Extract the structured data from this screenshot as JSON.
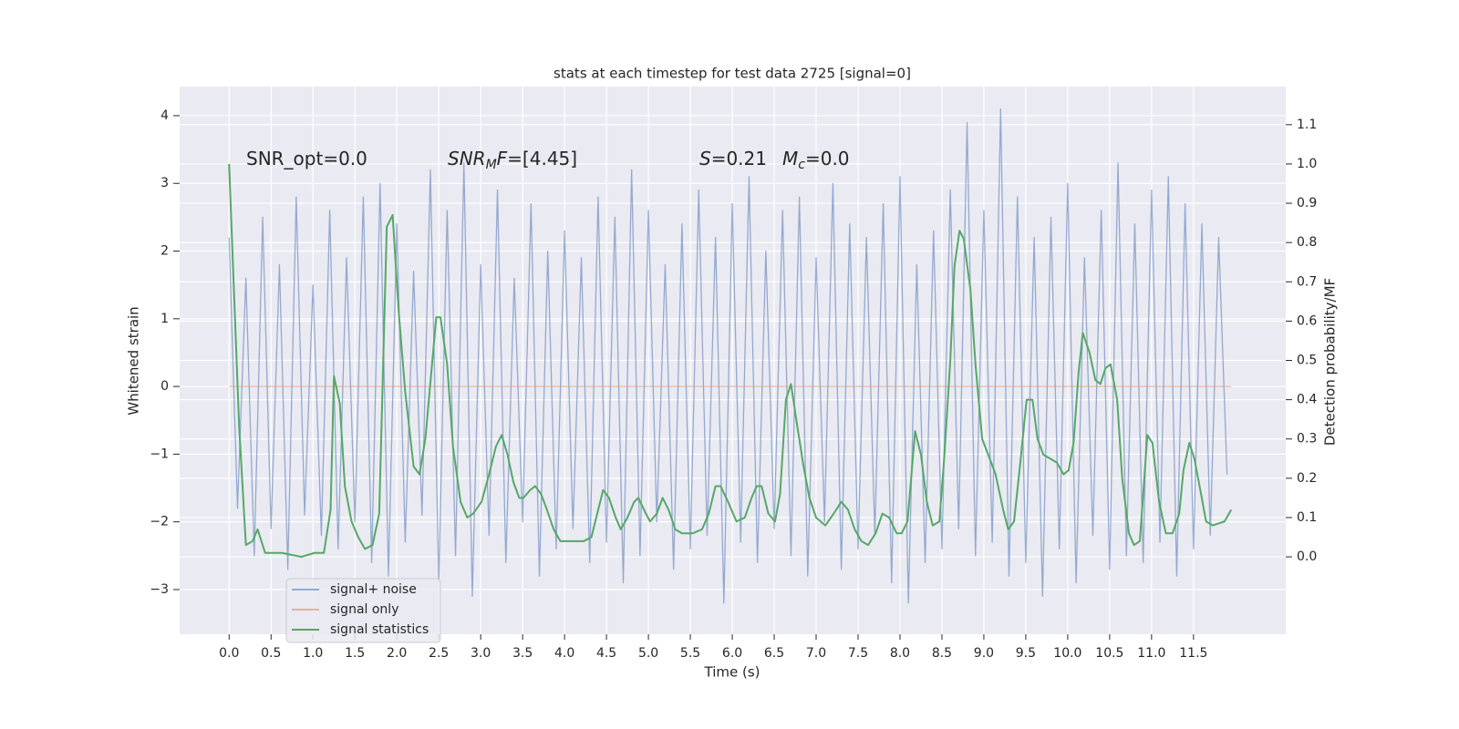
{
  "chart_data": {
    "type": "line",
    "title": "stats at each timestep for test data 2725 [signal=0]",
    "xlabel": "Time (s)",
    "ylabel": "Whitened strain",
    "y2label": "Detection probability/MF",
    "xlim": [
      -0.59,
      12.6
    ],
    "ylim": [
      -3.66,
      4.43
    ],
    "y2lim": [
      -0.197,
      1.197
    ],
    "xticks": [
      {
        "value": 0,
        "label": "0.0"
      },
      0.5,
      {
        "value": 1,
        "label": "1.0"
      },
      1.5,
      {
        "value": 2,
        "label": "2.0"
      },
      2.5,
      {
        "value": 3,
        "label": "3.0"
      },
      3.5,
      {
        "value": 4,
        "label": "4.0"
      },
      4.5,
      {
        "value": 5,
        "label": "5.0"
      },
      5.5,
      {
        "value": 6,
        "label": "6.0"
      },
      6.5,
      {
        "value": 7,
        "label": "7.0"
      },
      7.5,
      {
        "value": 8,
        "label": "8.0"
      },
      8.5,
      {
        "value": 9,
        "label": "9.0"
      },
      9.5,
      {
        "value": 10,
        "label": "10.0"
      },
      10.5,
      {
        "value": 11,
        "label": "11.0"
      },
      11.5
    ],
    "yticks": [
      {
        "value": -3,
        "label": "−3"
      },
      {
        "value": -2,
        "label": "−2"
      },
      {
        "value": -1,
        "label": "−1"
      },
      0,
      1,
      2,
      3,
      4
    ],
    "y2ticks": [
      {
        "value": 0,
        "label": "0.0"
      },
      0.1,
      0.2,
      0.3,
      0.4,
      0.5,
      0.6,
      0.7,
      0.8,
      0.9,
      {
        "value": 1,
        "label": "1.0"
      },
      1.1
    ],
    "grid": true,
    "annotations": [
      [
        {
          "text": "SNR_opt=0.0"
        }
      ],
      [
        {
          "text": "SNR",
          "italic": true
        },
        {
          "text": "M",
          "italic": true,
          "sub": true
        },
        {
          "text": "F",
          "italic": true
        },
        {
          "text": "=[4.45]"
        }
      ],
      [
        {
          "text": "S",
          "italic": true
        },
        {
          "text": "=0.21"
        }
      ],
      [
        {
          "text": "M",
          "italic": true
        },
        {
          "text": "c",
          "italic": true,
          "sub": true
        },
        {
          "text": "=0.0"
        }
      ]
    ],
    "series": [
      {
        "name": "signal+ noise",
        "color": "#4c72b0",
        "opacity": 0.55,
        "x": [
          0,
          0.1,
          0.2,
          0.3,
          0.4,
          0.5,
          0.6,
          0.7,
          0.8,
          0.9,
          1,
          1.1,
          1.2,
          1.3,
          1.4,
          1.5,
          1.6,
          1.7,
          1.8,
          1.9,
          2,
          2.1,
          2.2,
          2.3,
          2.4,
          2.5,
          2.6,
          2.7,
          2.8,
          2.9,
          3,
          3.1,
          3.2,
          3.3,
          3.4,
          3.5,
          3.6,
          3.7,
          3.8,
          3.9,
          4,
          4.1,
          4.2,
          4.3,
          4.4,
          4.5,
          4.6,
          4.7,
          4.8,
          4.9,
          5,
          5.1,
          5.2,
          5.3,
          5.4,
          5.5,
          5.6,
          5.7,
          5.8,
          5.9,
          6,
          6.1,
          6.2,
          6.3,
          6.4,
          6.5,
          6.6,
          6.7,
          6.8,
          6.9,
          7,
          7.1,
          7.2,
          7.3,
          7.4,
          7.5,
          7.6,
          7.7,
          7.8,
          7.9,
          8,
          8.1,
          8.2,
          8.3,
          8.4,
          8.5,
          8.6,
          8.7,
          8.8,
          8.9,
          9,
          9.1,
          9.2,
          9.3,
          9.4,
          9.5,
          9.6,
          9.7,
          9.8,
          9.9,
          10,
          10.1,
          10.2,
          10.3,
          10.4,
          10.5,
          10.6,
          10.7,
          10.8,
          10.9,
          11,
          11.1,
          11.2,
          11.3,
          11.4,
          11.5,
          11.6,
          11.7,
          11.8,
          11.9
        ],
        "values": [
          2.2,
          -1.8,
          1.6,
          -2.5,
          2.5,
          -2.1,
          1.8,
          -2.7,
          2.8,
          -1.9,
          1.5,
          -2.2,
          2.6,
          -2.4,
          1.9,
          -2.0,
          2.8,
          -2.6,
          3.0,
          -2.8,
          2.4,
          -2.3,
          1.7,
          -1.9,
          3.2,
          -2.9,
          2.6,
          -2.5,
          3.3,
          -3.1,
          1.8,
          -2.2,
          2.9,
          -2.6,
          1.6,
          -2.0,
          2.7,
          -2.8,
          2.0,
          -2.4,
          2.3,
          -2.1,
          1.9,
          -2.6,
          2.8,
          -2.3,
          2.5,
          -2.9,
          3.2,
          -2.5,
          2.6,
          -2.0,
          1.8,
          -2.7,
          2.4,
          -2.4,
          2.9,
          -2.2,
          2.2,
          -3.2,
          2.7,
          -2.3,
          3.1,
          -2.6,
          2.0,
          -2.1,
          2.6,
          -2.5,
          2.8,
          -2.8,
          1.9,
          -2.0,
          3.0,
          -2.7,
          2.4,
          -2.4,
          2.2,
          -2.2,
          2.7,
          -2.9,
          3.1,
          -3.2,
          1.8,
          -2.6,
          2.3,
          -2.4,
          2.9,
          -2.1,
          3.9,
          -2.5,
          2.6,
          -2.3,
          4.1,
          -2.8,
          2.8,
          -2.6,
          2.2,
          -3.1,
          2.5,
          -2.4,
          3.0,
          -2.9,
          1.9,
          -2.2,
          2.6,
          -2.7,
          3.3,
          -2.5,
          2.4,
          -2.6,
          2.9,
          -2.3,
          3.1,
          -2.8,
          2.7,
          -2.4,
          2.4,
          -2.2,
          2.2,
          -1.3
        ]
      },
      {
        "name": "signal only",
        "color": "#dd8452",
        "opacity": 0.55,
        "x": [
          0,
          11.95
        ],
        "values": [
          0,
          0
        ]
      },
      {
        "name": "signal statistics",
        "color": "#55a868",
        "opacity": 1,
        "axis": "y2",
        "x": [
          0,
          0.05,
          0.12,
          0.2,
          0.28,
          0.34,
          0.43,
          0.63,
          0.86,
          1.02,
          1.13,
          1.21,
          1.25,
          1.32,
          1.38,
          1.46,
          1.54,
          1.62,
          1.71,
          1.79,
          1.88,
          1.95,
          2.02,
          2.1,
          2.2,
          2.27,
          2.34,
          2.47,
          2.52,
          2.6,
          2.67,
          2.76,
          2.84,
          2.91,
          3.01,
          3.1,
          3.18,
          3.25,
          3.32,
          3.39,
          3.46,
          3.51,
          3.59,
          3.65,
          3.72,
          3.79,
          3.87,
          3.95,
          4.03,
          4.15,
          4.23,
          4.32,
          4.39,
          4.46,
          4.53,
          4.61,
          4.67,
          4.75,
          4.83,
          4.88,
          4.97,
          5.02,
          5.1,
          5.17,
          5.24,
          5.32,
          5.4,
          5.53,
          5.64,
          5.72,
          5.8,
          5.86,
          5.95,
          6.05,
          6.15,
          6.23,
          6.29,
          6.35,
          6.43,
          6.51,
          6.57,
          6.64,
          6.7,
          6.77,
          6.85,
          6.92,
          7.0,
          7.11,
          7.21,
          7.3,
          7.38,
          7.46,
          7.54,
          7.62,
          7.71,
          7.79,
          7.87,
          7.96,
          8.02,
          8.09,
          8.18,
          8.25,
          8.32,
          8.39,
          8.47,
          8.53,
          8.6,
          8.65,
          8.71,
          8.76,
          8.84,
          8.9,
          8.98,
          9.07,
          9.14,
          9.23,
          9.29,
          9.36,
          9.43,
          9.51,
          9.58,
          9.64,
          9.71,
          9.79,
          9.87,
          9.95,
          10.01,
          10.07,
          10.13,
          10.18,
          10.26,
          10.33,
          10.39,
          10.45,
          10.51,
          10.59,
          10.65,
          10.73,
          10.79,
          10.86,
          10.95,
          11.01,
          11.09,
          11.17,
          11.25,
          11.33,
          11.38,
          11.45,
          11.51,
          11.59,
          11.65,
          11.73,
          11.87,
          11.95
        ],
        "values": [
          1.0,
          0.72,
          0.33,
          0.03,
          0.04,
          0.07,
          0.01,
          0.01,
          0.0,
          0.01,
          0.01,
          0.12,
          0.46,
          0.39,
          0.18,
          0.09,
          0.05,
          0.02,
          0.03,
          0.11,
          0.84,
          0.87,
          0.63,
          0.42,
          0.23,
          0.21,
          0.3,
          0.61,
          0.61,
          0.49,
          0.28,
          0.14,
          0.1,
          0.11,
          0.14,
          0.21,
          0.28,
          0.31,
          0.26,
          0.19,
          0.15,
          0.15,
          0.17,
          0.18,
          0.16,
          0.12,
          0.07,
          0.04,
          0.04,
          0.04,
          0.04,
          0.05,
          0.11,
          0.17,
          0.15,
          0.1,
          0.07,
          0.1,
          0.14,
          0.15,
          0.11,
          0.09,
          0.11,
          0.15,
          0.12,
          0.07,
          0.06,
          0.06,
          0.07,
          0.11,
          0.18,
          0.18,
          0.14,
          0.09,
          0.1,
          0.15,
          0.18,
          0.18,
          0.11,
          0.09,
          0.16,
          0.4,
          0.44,
          0.34,
          0.23,
          0.15,
          0.1,
          0.08,
          0.11,
          0.14,
          0.12,
          0.07,
          0.04,
          0.03,
          0.06,
          0.11,
          0.1,
          0.06,
          0.06,
          0.09,
          0.32,
          0.26,
          0.14,
          0.08,
          0.09,
          0.26,
          0.5,
          0.74,
          0.83,
          0.81,
          0.68,
          0.49,
          0.3,
          0.25,
          0.21,
          0.12,
          0.07,
          0.09,
          0.23,
          0.4,
          0.4,
          0.3,
          0.26,
          0.25,
          0.24,
          0.21,
          0.22,
          0.29,
          0.47,
          0.57,
          0.52,
          0.45,
          0.44,
          0.48,
          0.49,
          0.4,
          0.2,
          0.06,
          0.03,
          0.04,
          0.31,
          0.29,
          0.14,
          0.06,
          0.06,
          0.11,
          0.22,
          0.29,
          0.25,
          0.16,
          0.09,
          0.08,
          0.09,
          0.12
        ]
      }
    ]
  }
}
